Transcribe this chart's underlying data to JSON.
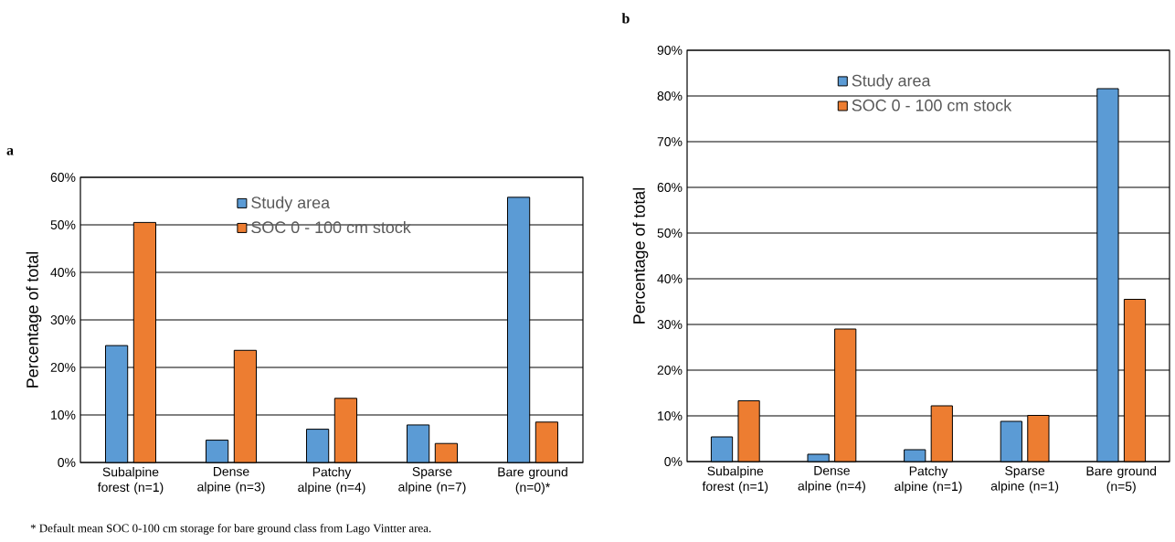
{
  "chart_data": [
    {
      "type": "bar",
      "title": "a",
      "ylabel": "Percentage of total",
      "categories": [
        "Subalpine forest (n=1)",
        "Dense alpine (n=3)",
        "Patchy alpine (n=4)",
        "Sparse alpine (n=7)",
        "Bare ground (n=0)*"
      ],
      "series": [
        {
          "name": "Study area",
          "color": "#5b9bd5",
          "values": [
            24.6,
            4.7,
            7.0,
            7.9,
            55.8
          ]
        },
        {
          "name": "SOC 0 - 100 cm stock",
          "color": "#ed7d31",
          "values": [
            50.5,
            23.6,
            13.5,
            4.0,
            8.5
          ]
        }
      ],
      "ylim": [
        0,
        60
      ],
      "yticks": [
        {
          "value": 0,
          "label": "0%"
        },
        {
          "value": 10,
          "label": "10%"
        },
        {
          "value": 20,
          "label": "20%"
        },
        {
          "value": 30,
          "label": "30%"
        },
        {
          "value": 40,
          "label": "40%"
        },
        {
          "value": 50,
          "label": "50%"
        },
        {
          "value": 60,
          "label": "60%"
        }
      ],
      "grid": "y",
      "legend": "top",
      "annotations": [
        "* Default mean SOC 0-100 cm storage for bare ground class from Lago Vintter area."
      ]
    },
    {
      "type": "bar",
      "title": "b",
      "ylabel": "Percentage of total",
      "categories": [
        "Subalpine forest (n=1)",
        "Dense alpine (n=4)",
        "Patchy alpine (n=1)",
        "Sparse alpine (n=1)",
        "Bare ground (n=5)"
      ],
      "series": [
        {
          "name": "Study area",
          "color": "#5b9bd5",
          "values": [
            5.4,
            1.6,
            2.6,
            8.8,
            81.6
          ]
        },
        {
          "name": "SOC 0 - 100 cm stock",
          "color": "#ed7d31",
          "values": [
            13.3,
            29.0,
            12.2,
            10.1,
            35.5
          ]
        }
      ],
      "ylim": [
        0,
        90
      ],
      "yticks": [
        {
          "value": 0,
          "label": "0%"
        },
        {
          "value": 10,
          "label": "10%"
        },
        {
          "value": 20,
          "label": "20%"
        },
        {
          "value": 30,
          "label": "30%"
        },
        {
          "value": 40,
          "label": "40%"
        },
        {
          "value": 50,
          "label": "50%"
        },
        {
          "value": 60,
          "label": "60%"
        },
        {
          "value": 70,
          "label": "70%"
        },
        {
          "value": 80,
          "label": "80%"
        },
        {
          "value": 90,
          "label": "90%"
        }
      ],
      "grid": "y",
      "legend": "top"
    }
  ]
}
